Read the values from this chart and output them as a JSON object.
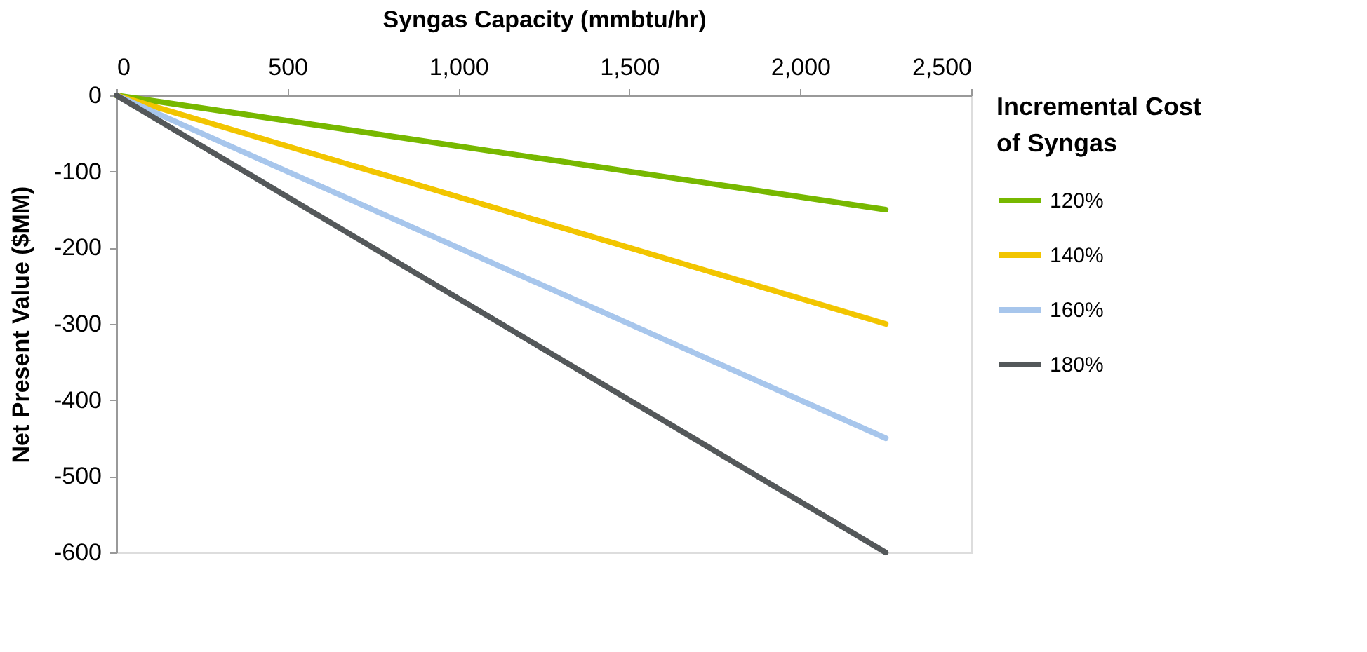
{
  "chart_data": {
    "type": "line",
    "xlabel": "Syngas Capacity (mmbtu/hr)",
    "ylabel": "Net Present Value ($MM)",
    "legend_title": "Incremental Cost of Syngas",
    "x": [
      0,
      2250
    ],
    "xlim": [
      0,
      2500
    ],
    "xticks": [
      0,
      {
        "value": 500,
        "label": "500"
      },
      {
        "value": 1000,
        "label": "1,000"
      },
      {
        "value": 1500,
        "label": "1,500"
      },
      {
        "value": 2000,
        "label": "2,000"
      },
      {
        "value": 2500,
        "label": "2,500"
      }
    ],
    "ylim": [
      -600,
      0
    ],
    "yticks": [
      -600,
      -500,
      -400,
      -300,
      -200,
      -100,
      0
    ],
    "series": [
      {
        "name": "120%",
        "color": "#77b800",
        "values": [
          0,
          -150
        ]
      },
      {
        "name": "140%",
        "color": "#f2c500",
        "values": [
          0,
          -300
        ]
      },
      {
        "name": "160%",
        "color": "#a7c6ec",
        "values": [
          0,
          -450
        ]
      },
      {
        "name": "180%",
        "color": "#54585a",
        "values": [
          0,
          -600
        ]
      }
    ],
    "legend": "right",
    "grid": false,
    "marker": "none",
    "line_style": "solid"
  }
}
